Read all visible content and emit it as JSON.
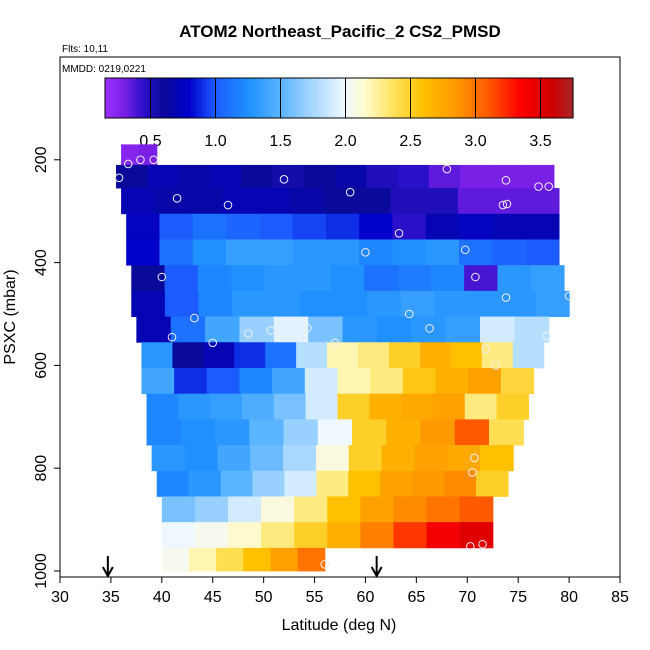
{
  "chart_data": {
    "type": "heatmap",
    "title": "ATOM2 Northeast_Pacific_2 CS2_PMSD",
    "flights_text": "Flts: 10,11",
    "dates_text": "MMDD: 0219,0221",
    "xlabel": "Latitude (deg N)",
    "ylabel": "PSXC (mbar)",
    "xlim": [
      30,
      85
    ],
    "ylim": [
      1000,
      0
    ],
    "x_ticks": [
      30,
      35,
      40,
      45,
      50,
      55,
      60,
      65,
      70,
      75,
      80,
      85
    ],
    "x_tick_labels": [
      "30",
      "35",
      "40",
      "45",
      "50",
      "55",
      "60",
      "65",
      "70",
      "75",
      "80",
      "85"
    ],
    "y_ticks": [
      200,
      400,
      600,
      800,
      1000
    ],
    "y_tick_labels": [
      "200",
      "400",
      "600",
      "800",
      "1000"
    ],
    "colorbar": {
      "range": [
        0.15,
        3.75
      ],
      "ticks": [
        0.5,
        1.0,
        1.5,
        2.0,
        2.5,
        3.0,
        3.5
      ],
      "tick_labels": [
        "0.5",
        "1.0",
        "1.5",
        "2.0",
        "2.5",
        "3.0",
        "3.5"
      ],
      "stops": [
        {
          "v": 0.15,
          "color": "#9b30ff"
        },
        {
          "v": 0.3,
          "color": "#7a1fe6"
        },
        {
          "v": 0.45,
          "color": "#2a10c8"
        },
        {
          "v": 0.6,
          "color": "#0a0a9a"
        },
        {
          "v": 0.8,
          "color": "#0000cd"
        },
        {
          "v": 1.0,
          "color": "#1c5cff"
        },
        {
          "v": 1.25,
          "color": "#1e90ff"
        },
        {
          "v": 1.5,
          "color": "#5ab4ff"
        },
        {
          "v": 1.75,
          "color": "#a8d8ff"
        },
        {
          "v": 2.0,
          "color": "#f0f8ff"
        },
        {
          "v": 2.15,
          "color": "#fffacd"
        },
        {
          "v": 2.35,
          "color": "#ffe566"
        },
        {
          "v": 2.6,
          "color": "#ffc000"
        },
        {
          "v": 2.85,
          "color": "#ff9900"
        },
        {
          "v": 3.1,
          "color": "#ff5a00"
        },
        {
          "v": 3.35,
          "color": "#ff0000"
        },
        {
          "v": 3.6,
          "color": "#cc0000"
        },
        {
          "v": 3.75,
          "color": "#a52a2a"
        }
      ]
    },
    "bands": [
      {
        "p1": 170,
        "p2": 210,
        "lat_start": 36.0,
        "lat_end": 39.5,
        "values": [
          0.25,
          0.3
        ]
      },
      {
        "p1": 210,
        "p2": 255,
        "lat_start": 35.5,
        "lat_end": 78.5,
        "values": [
          0.6,
          0.7,
          0.65,
          0.7,
          0.6,
          0.55,
          0.6,
          0.65,
          0.5,
          0.45,
          0.35,
          0.3,
          0.3,
          0.3
        ]
      },
      {
        "p1": 255,
        "p2": 305,
        "lat_start": 36.0,
        "lat_end": 79.0,
        "values": [
          0.7,
          0.65,
          0.65,
          0.7,
          0.7,
          0.65,
          0.6,
          0.6,
          0.5,
          0.5,
          0.35,
          0.35,
          0.35
        ]
      },
      {
        "p1": 305,
        "p2": 355,
        "lat_start": 36.5,
        "lat_end": 79.0,
        "values": [
          0.75,
          1.0,
          1.1,
          1.05,
          1.0,
          0.95,
          0.9,
          0.8,
          0.45,
          0.7,
          0.75,
          0.7,
          0.7
        ]
      },
      {
        "p1": 355,
        "p2": 405,
        "lat_start": 36.5,
        "lat_end": 79.0,
        "values": [
          0.8,
          1.1,
          1.25,
          1.35,
          1.35,
          1.3,
          1.3,
          1.2,
          1.25,
          1.3,
          1.1,
          1.05,
          1.0
        ]
      },
      {
        "p1": 405,
        "p2": 455,
        "lat_start": 37.0,
        "lat_end": 79.5,
        "values": [
          0.6,
          1.0,
          1.2,
          1.25,
          1.3,
          1.3,
          1.25,
          1.1,
          1.15,
          1.2,
          0.4,
          1.3,
          1.35
        ]
      },
      {
        "p1": 455,
        "p2": 505,
        "lat_start": 37.0,
        "lat_end": 80.0,
        "values": [
          0.7,
          1.0,
          1.2,
          1.3,
          1.3,
          1.25,
          1.25,
          1.3,
          1.35,
          1.3,
          1.3,
          1.3,
          1.35
        ]
      },
      {
        "p1": 505,
        "p2": 555,
        "lat_start": 37.5,
        "lat_end": 78.0,
        "values": [
          0.7,
          1.1,
          1.4,
          1.7,
          1.95,
          1.6,
          1.3,
          1.25,
          1.3,
          1.35,
          1.9,
          1.8
        ]
      },
      {
        "p1": 555,
        "p2": 605,
        "lat_start": 38.0,
        "lat_end": 77.5,
        "values": [
          1.3,
          0.6,
          0.7,
          0.9,
          1.1,
          1.8,
          2.2,
          2.3,
          2.5,
          2.7,
          2.6,
          2.3,
          1.8
        ]
      },
      {
        "p1": 605,
        "p2": 655,
        "lat_start": 38.0,
        "lat_end": 76.5,
        "values": [
          1.4,
          0.9,
          1.0,
          1.2,
          1.4,
          1.9,
          2.2,
          2.3,
          2.55,
          2.7,
          2.8,
          2.45
        ]
      },
      {
        "p1": 655,
        "p2": 705,
        "lat_start": 38.5,
        "lat_end": 76.0,
        "values": [
          1.2,
          1.3,
          1.35,
          1.45,
          1.6,
          1.9,
          2.5,
          2.7,
          2.75,
          2.8,
          2.3,
          2.5
        ]
      },
      {
        "p1": 705,
        "p2": 755,
        "lat_start": 38.5,
        "lat_end": 75.5,
        "values": [
          1.2,
          1.25,
          1.3,
          1.5,
          1.7,
          2.0,
          2.5,
          2.7,
          2.85,
          3.1,
          2.4
        ]
      },
      {
        "p1": 755,
        "p2": 805,
        "lat_start": 39.0,
        "lat_end": 74.5,
        "values": [
          1.3,
          1.25,
          1.4,
          1.55,
          1.75,
          2.1,
          2.5,
          2.7,
          2.8,
          2.75,
          2.6
        ]
      },
      {
        "p1": 805,
        "p2": 855,
        "lat_start": 39.5,
        "lat_end": 74.0,
        "values": [
          1.2,
          1.3,
          1.5,
          1.7,
          1.9,
          2.3,
          2.6,
          2.8,
          2.85,
          2.9,
          2.5
        ]
      },
      {
        "p1": 855,
        "p2": 905,
        "lat_start": 40.0,
        "lat_end": 72.5,
        "values": [
          1.6,
          1.7,
          1.9,
          2.1,
          2.3,
          2.6,
          2.8,
          2.9,
          3.0,
          3.1
        ]
      },
      {
        "p1": 905,
        "p2": 955,
        "lat_start": 40.0,
        "lat_end": 72.5,
        "values": [
          2.0,
          2.05,
          2.15,
          2.3,
          2.5,
          2.7,
          2.95,
          3.2,
          3.4,
          3.5
        ]
      },
      {
        "p1": 955,
        "p2": 1000,
        "lat_start": 40.0,
        "lat_end": 56.0,
        "values": [
          2.05,
          2.2,
          2.4,
          2.6,
          2.8,
          3.0
        ]
      }
    ],
    "observations": [
      {
        "lat": 35.8,
        "p": 235
      },
      {
        "lat": 36.7,
        "p": 208
      },
      {
        "lat": 37.9,
        "p": 200
      },
      {
        "lat": 39.2,
        "p": 200
      },
      {
        "lat": 41.5,
        "p": 275
      },
      {
        "lat": 46.5,
        "p": 288
      },
      {
        "lat": 52.0,
        "p": 238
      },
      {
        "lat": 58.5,
        "p": 263
      },
      {
        "lat": 68.0,
        "p": 218
      },
      {
        "lat": 73.8,
        "p": 240
      },
      {
        "lat": 77.0,
        "p": 252
      },
      {
        "lat": 78.0,
        "p": 252
      },
      {
        "lat": 73.5,
        "p": 288
      },
      {
        "lat": 73.9,
        "p": 286
      },
      {
        "lat": 63.3,
        "p": 343
      },
      {
        "lat": 60.0,
        "p": 380
      },
      {
        "lat": 69.8,
        "p": 375
      },
      {
        "lat": 70.8,
        "p": 428
      },
      {
        "lat": 40.0,
        "p": 428
      },
      {
        "lat": 43.2,
        "p": 508
      },
      {
        "lat": 73.8,
        "p": 468
      },
      {
        "lat": 80.0,
        "p": 465
      },
      {
        "lat": 64.3,
        "p": 500
      },
      {
        "lat": 66.3,
        "p": 528
      },
      {
        "lat": 45.0,
        "p": 556
      },
      {
        "lat": 48.5,
        "p": 538
      },
      {
        "lat": 50.7,
        "p": 532
      },
      {
        "lat": 54.3,
        "p": 527
      },
      {
        "lat": 57.0,
        "p": 556
      },
      {
        "lat": 41.0,
        "p": 545
      },
      {
        "lat": 71.8,
        "p": 568
      },
      {
        "lat": 77.8,
        "p": 543
      },
      {
        "lat": 72.8,
        "p": 600
      },
      {
        "lat": 70.7,
        "p": 780
      },
      {
        "lat": 70.5,
        "p": 808
      },
      {
        "lat": 70.3,
        "p": 952
      },
      {
        "lat": 71.5,
        "p": 948
      },
      {
        "lat": 56.0,
        "p": 987
      }
    ],
    "arrows_lat": [
      34.7,
      61.1
    ]
  }
}
